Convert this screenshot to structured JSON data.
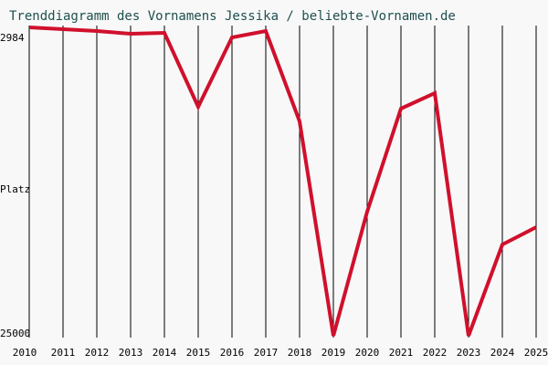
{
  "chart_data": {
    "type": "line",
    "title": "Trenddiagramm des Vornamens Jessika / beliebte-Vornamen.de",
    "y_label": "Platz",
    "categories": [
      "2010",
      "2011",
      "2012",
      "2013",
      "2014",
      "2015",
      "2016",
      "2017",
      "2018",
      "2019",
      "2020",
      "2021",
      "2022",
      "2023",
      "2024",
      "2025"
    ],
    "series": [
      {
        "name": "Jessika",
        "color": "#d0102c",
        "values": [
          2984,
          3114,
          3245,
          3440,
          3375,
          8651,
          3700,
          3245,
          9693,
          25000,
          16142,
          8781,
          7674,
          25000,
          18487,
          17250
        ]
      }
    ],
    "ylim": [
      25000,
      2984
    ],
    "yticks": [
      2984,
      25000
    ],
    "grid": true
  }
}
